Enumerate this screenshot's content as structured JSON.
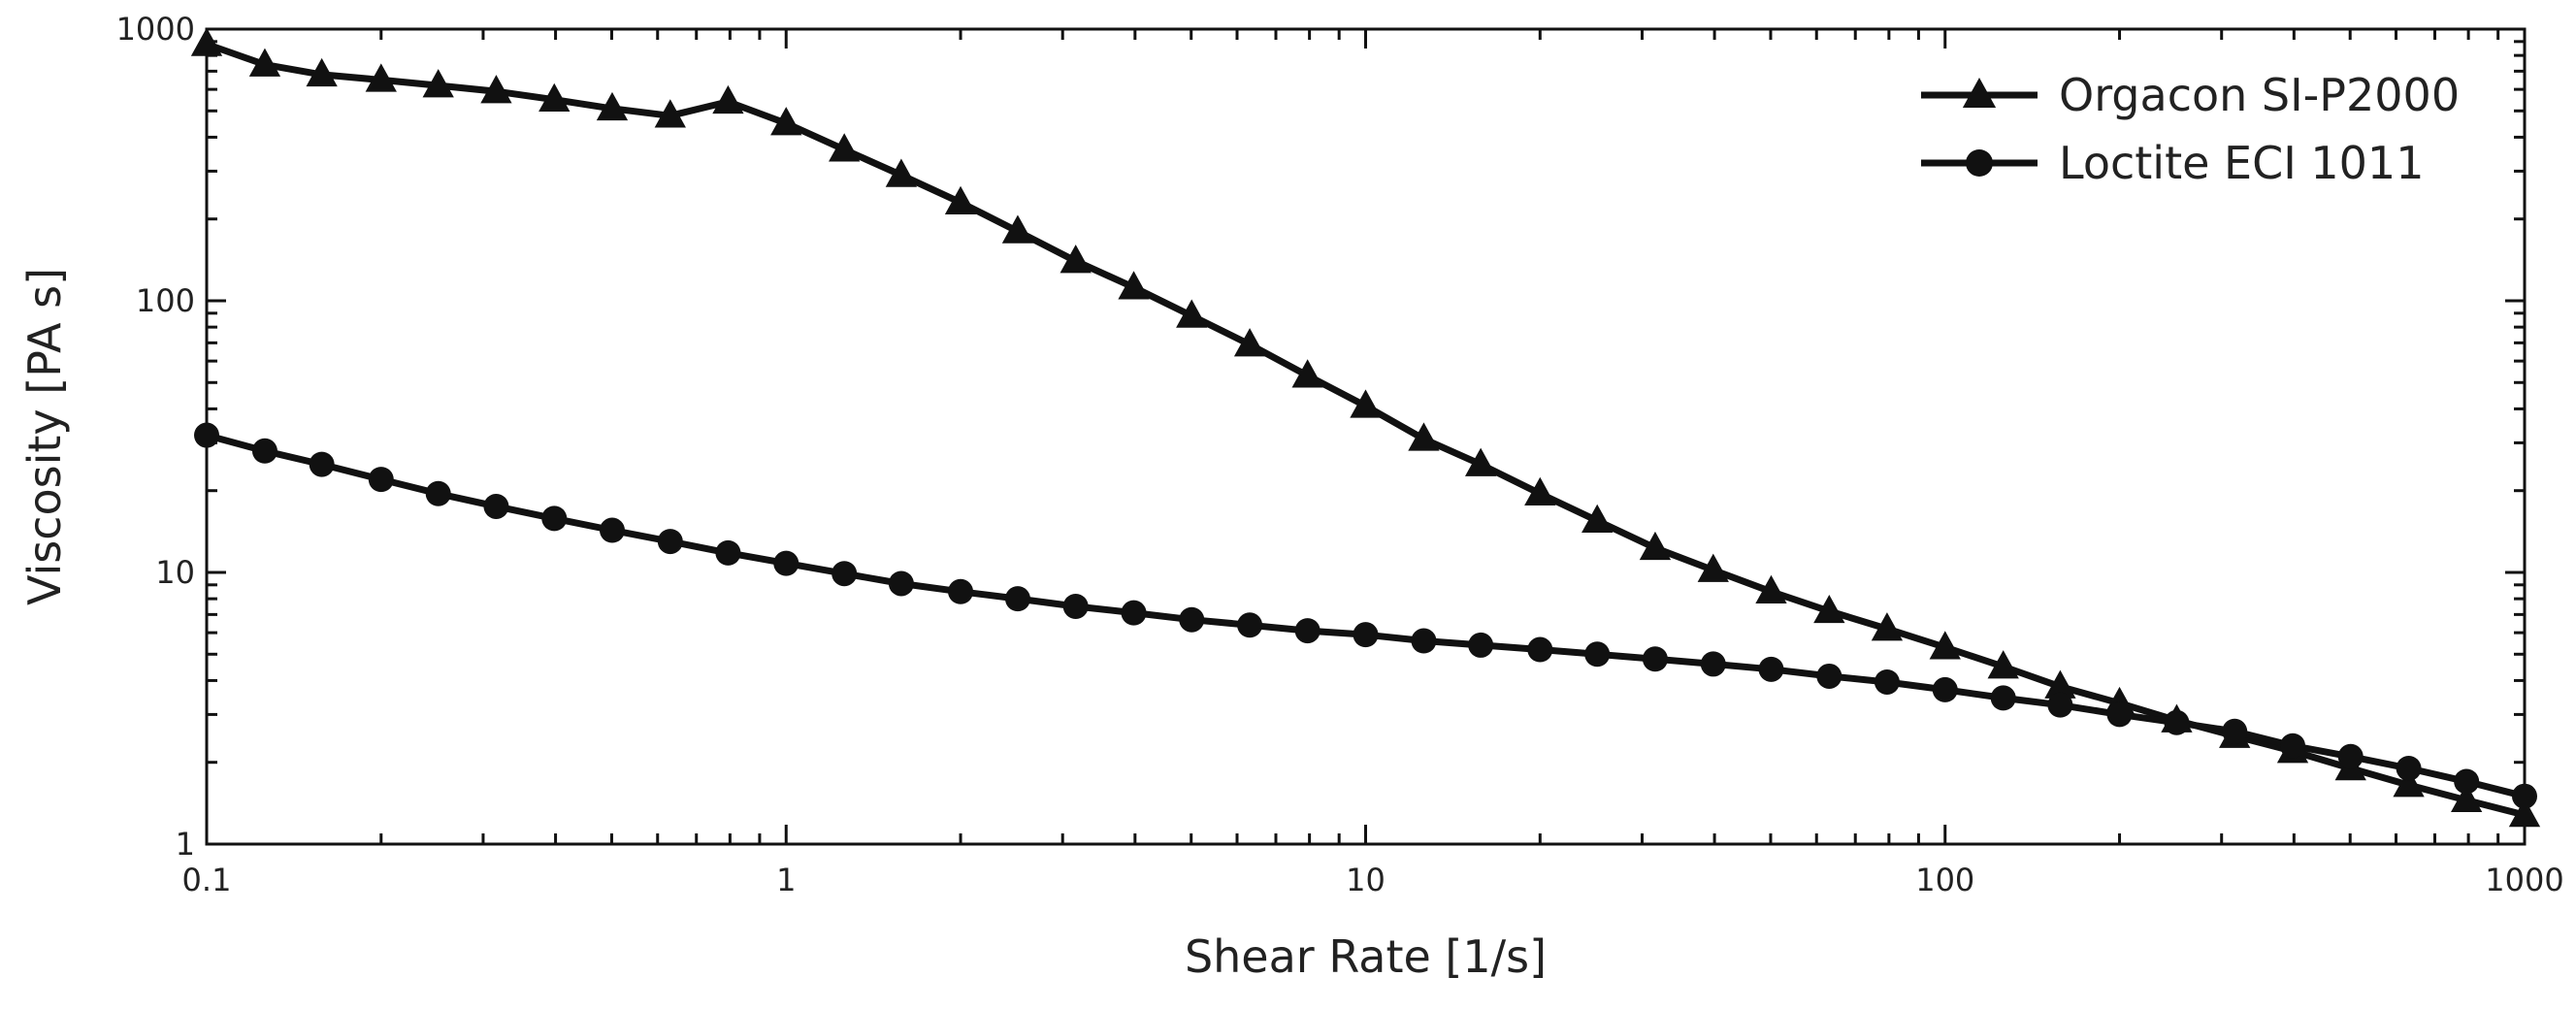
{
  "chart_data": {
    "type": "line",
    "title": "",
    "xlabel": "Shear Rate [1/s]",
    "ylabel": "Viscosity [PA s]",
    "xscale": "log",
    "yscale": "log",
    "xlim": [
      0.1,
      1000
    ],
    "ylim": [
      1,
      1000
    ],
    "xticks": [
      0.1,
      1,
      10,
      100,
      1000
    ],
    "xtick_labels": [
      "0.1",
      "1",
      "10",
      "100",
      "1000"
    ],
    "yticks": [
      1,
      10,
      100,
      1000
    ],
    "ytick_labels": [
      "1",
      "10",
      "100",
      "1000"
    ],
    "grid": false,
    "legend_position": "top-right",
    "line_color": "#111111",
    "series": [
      {
        "name": "Orgacon SI-P2000",
        "marker": "triangle",
        "x": [
          0.1,
          0.126,
          0.158,
          0.2,
          0.251,
          0.316,
          0.398,
          0.501,
          0.631,
          0.794,
          1,
          1.26,
          1.58,
          2,
          2.51,
          3.16,
          3.98,
          5.01,
          6.31,
          7.94,
          10,
          12.6,
          15.8,
          20,
          25.1,
          31.6,
          39.8,
          50.1,
          63.1,
          79.4,
          100,
          126,
          158,
          200,
          251,
          316,
          398,
          501,
          631,
          794,
          1000
        ],
        "y": [
          880,
          740,
          680,
          650,
          620,
          590,
          550,
          510,
          480,
          540,
          450,
          360,
          290,
          230,
          180,
          140,
          112,
          88,
          69,
          53,
          41,
          31,
          25,
          19.5,
          15.5,
          12.3,
          10.2,
          8.5,
          7.2,
          6.2,
          5.3,
          4.5,
          3.8,
          3.3,
          2.85,
          2.5,
          2.2,
          1.9,
          1.65,
          1.45,
          1.28
        ]
      },
      {
        "name": "Loctite ECI 1011",
        "marker": "circle",
        "x": [
          0.1,
          0.126,
          0.158,
          0.2,
          0.251,
          0.316,
          0.398,
          0.501,
          0.631,
          0.794,
          1,
          1.26,
          1.58,
          2,
          2.51,
          3.16,
          3.98,
          5.01,
          6.31,
          7.94,
          10,
          12.6,
          15.8,
          20,
          25.1,
          31.6,
          39.8,
          50.1,
          63.1,
          79.4,
          100,
          126,
          158,
          200,
          251,
          316,
          398,
          501,
          631,
          794,
          1000
        ],
        "y": [
          32,
          28,
          25,
          22,
          19.5,
          17.5,
          15.8,
          14.3,
          13,
          11.8,
          10.8,
          9.9,
          9.1,
          8.5,
          8,
          7.5,
          7.1,
          6.7,
          6.4,
          6.1,
          5.9,
          5.6,
          5.4,
          5.2,
          5,
          4.8,
          4.6,
          4.4,
          4.15,
          3.95,
          3.7,
          3.45,
          3.25,
          3,
          2.8,
          2.6,
          2.3,
          2.1,
          1.9,
          1.7,
          1.5
        ]
      }
    ]
  }
}
